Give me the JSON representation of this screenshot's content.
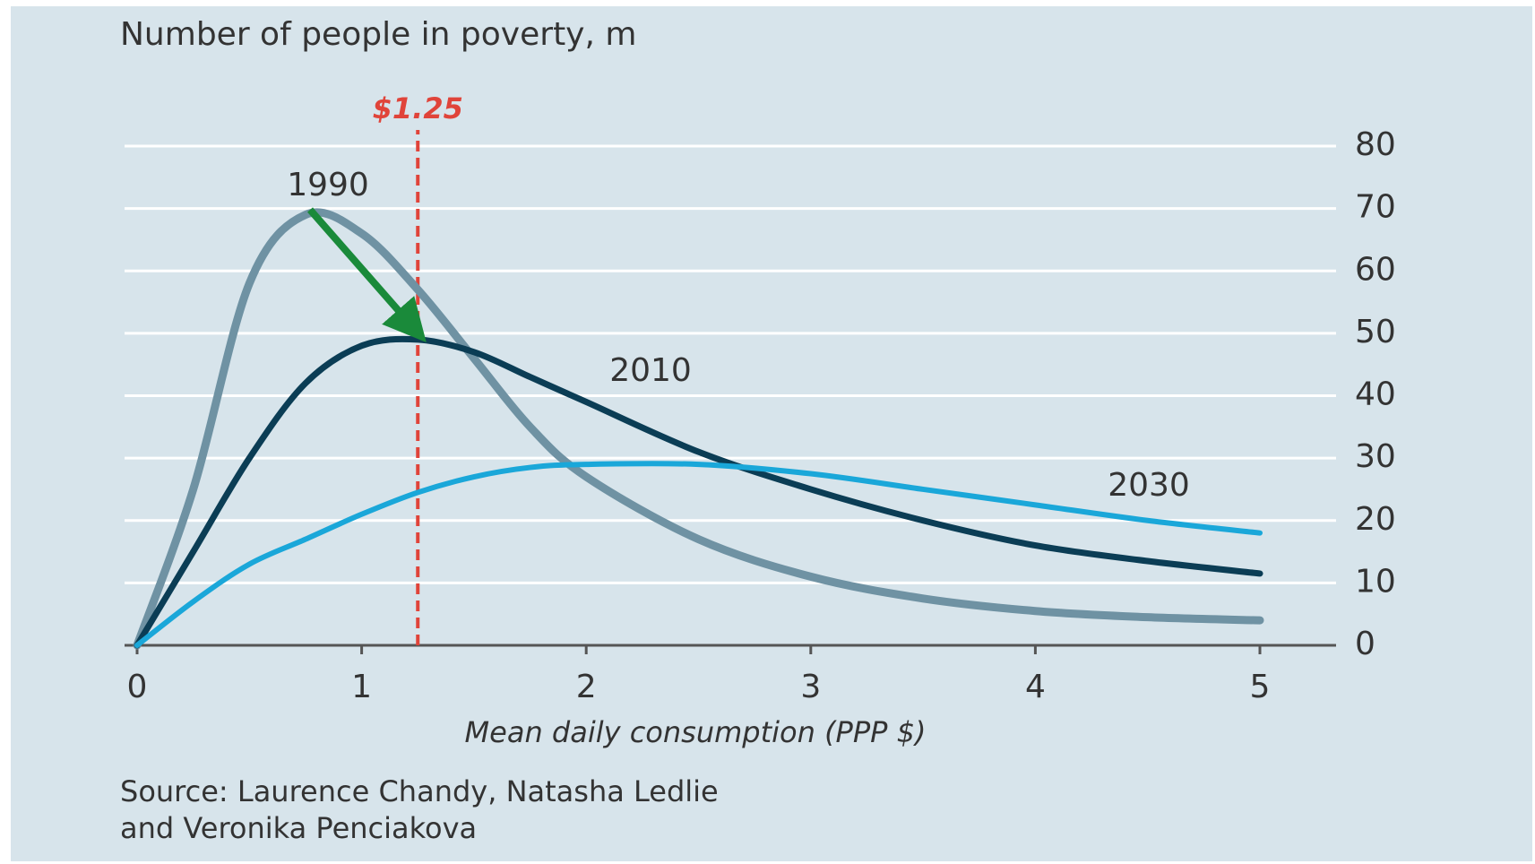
{
  "chart_data": {
    "type": "line",
    "title": "Number of people in poverty, m",
    "x_label": "Mean daily consumption (PPP $)",
    "source": [
      "Source: Laurence Chandy, Natasha Ledlie",
      "and Veronika Penciakova"
    ],
    "x": [
      0,
      0.25,
      0.5,
      0.75,
      1,
      1.25,
      1.5,
      1.75,
      2,
      2.5,
      3,
      3.5,
      4,
      4.5,
      5
    ],
    "series": [
      {
        "name": "1990",
        "color": "#6f92a3",
        "values": [
          0,
          25,
          58,
          69,
          66,
          57,
          46,
          35,
          27,
          17,
          11,
          7.5,
          5.5,
          4.5,
          4
        ]
      },
      {
        "name": "2010",
        "color": "#0b3d55",
        "values": [
          0,
          15,
          30,
          42,
          48,
          49,
          47,
          43,
          39,
          31,
          25,
          20,
          16,
          13.5,
          11.5
        ]
      },
      {
        "name": "2030",
        "color": "#1aa7d9",
        "values": [
          0,
          7,
          13,
          17,
          21,
          24.5,
          27,
          28.5,
          29,
          29,
          27.5,
          25,
          22.5,
          20,
          18
        ]
      }
    ],
    "reference_line": {
      "value": 1.25,
      "label": "$1.25",
      "color": "#e0443a"
    },
    "xlim": [
      0,
      5
    ],
    "xticks": [
      0,
      1,
      2,
      3,
      4,
      5
    ],
    "ylim": [
      0,
      80
    ],
    "yticks": [
      0,
      10,
      20,
      30,
      40,
      50,
      60,
      70,
      80
    ],
    "grid": true
  }
}
